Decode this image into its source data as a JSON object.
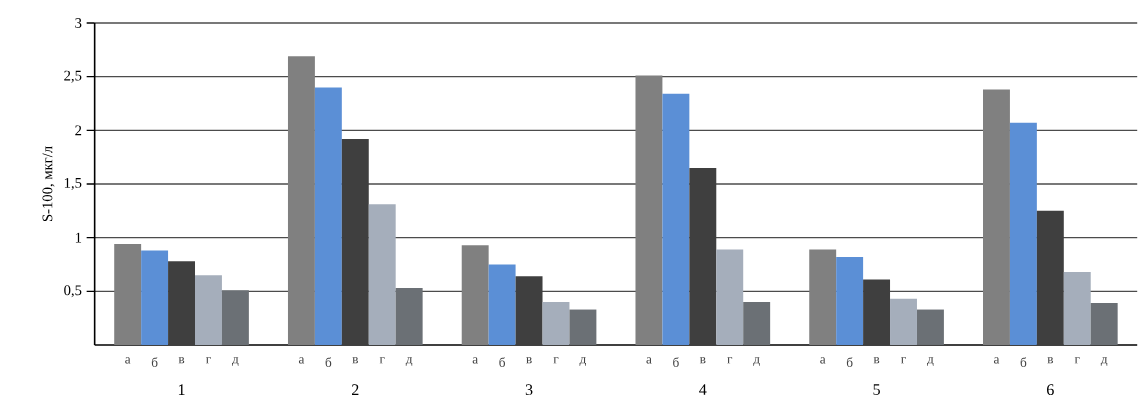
{
  "chart_data": {
    "type": "bar",
    "ylabel": "S-100, мкг/л",
    "categories": [
      "1",
      "2",
      "3",
      "4",
      "5",
      "6"
    ],
    "series": [
      {
        "name": "а",
        "color": "#808080",
        "values": [
          0.94,
          2.69,
          0.93,
          2.51,
          0.89,
          2.38
        ]
      },
      {
        "name": "б",
        "color": "#5b8fd6",
        "values": [
          0.88,
          2.4,
          0.75,
          2.34,
          0.82,
          2.07
        ]
      },
      {
        "name": "в",
        "color": "#3f3f3f",
        "values": [
          0.78,
          1.92,
          0.64,
          1.65,
          0.61,
          1.25
        ]
      },
      {
        "name": "г",
        "color": "#a5aebb",
        "values": [
          0.65,
          1.31,
          0.4,
          0.89,
          0.43,
          0.68
        ]
      },
      {
        "name": "д",
        "color": "#6b7075",
        "values": [
          0.51,
          0.53,
          0.33,
          0.4,
          0.33,
          0.39
        ]
      }
    ],
    "ylim": [
      0,
      3
    ],
    "yticks": [
      {
        "value": 0.5,
        "label": "0,5"
      },
      1,
      {
        "value": 1.5,
        "label": "1,5"
      },
      2,
      {
        "value": 2.5,
        "label": "2,5"
      },
      3
    ],
    "grid": "y"
  }
}
